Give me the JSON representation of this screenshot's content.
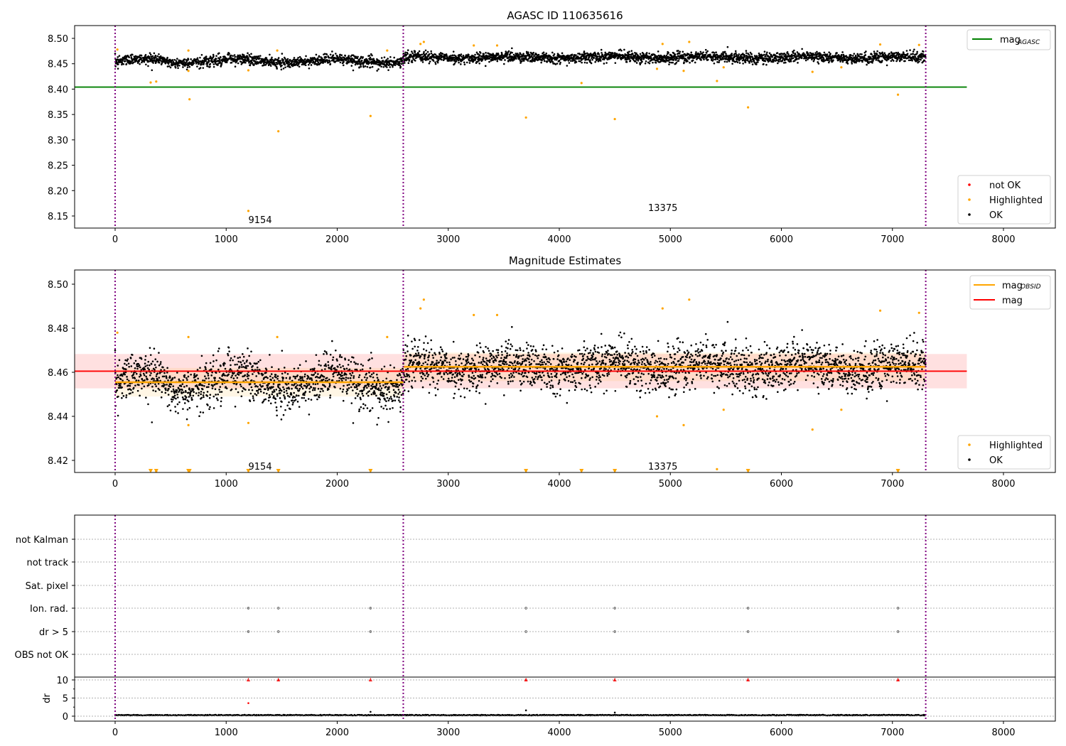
{
  "chart_data": [
    {
      "type": "scatter",
      "title": "AGASC ID 110635616",
      "xlim": [
        -370,
        8470
      ],
      "ylim": [
        8.132,
        8.526
      ],
      "xticks": [
        0,
        1000,
        2000,
        3000,
        4000,
        5000,
        6000,
        7000,
        8000
      ],
      "yticks": [
        8.15,
        8.2,
        8.25,
        8.3,
        8.35,
        8.4,
        8.45,
        8.5
      ],
      "mag_agasc": 8.404,
      "hline_xrange": [
        -370,
        7670
      ],
      "obsid_bounds": [
        0,
        2595,
        7300
      ],
      "obsids": [
        {
          "label": "9154",
          "start": 0,
          "end": 2595,
          "mean": 8.4555,
          "std": 0.0065,
          "wobble": 0.004,
          "n": 1300,
          "label_x": 1200,
          "label_y": 8.143
        },
        {
          "label": "13375",
          "start": 2595,
          "end": 7300,
          "mean": 8.4625,
          "std": 0.0065,
          "wobble": 0.002,
          "n": 2400,
          "label_x": 4800,
          "label_y": 8.167
        }
      ],
      "highlighted": [
        [
          320,
          8.413
        ],
        [
          370,
          8.415
        ],
        [
          660,
          8.436
        ],
        [
          670,
          8.38
        ],
        [
          1200,
          8.437
        ],
        [
          1200,
          8.16
        ],
        [
          1470,
          8.317
        ],
        [
          2300,
          8.347
        ],
        [
          3700,
          8.344
        ],
        [
          4200,
          8.412
        ],
        [
          4500,
          8.341
        ],
        [
          5420,
          8.416
        ],
        [
          5700,
          8.364
        ],
        [
          7050,
          8.389
        ],
        [
          6280,
          8.434
        ],
        [
          5120,
          8.436
        ],
        [
          4880,
          8.44
        ],
        [
          5480,
          8.443
        ],
        [
          6540,
          8.443
        ],
        [
          20,
          8.478
        ],
        [
          660,
          8.476
        ],
        [
          2450,
          8.476
        ],
        [
          2750,
          8.489
        ],
        [
          2780,
          8.493
        ],
        [
          3230,
          8.486
        ],
        [
          4930,
          8.489
        ],
        [
          5170,
          8.493
        ],
        [
          6890,
          8.488
        ],
        [
          7240,
          8.487
        ],
        [
          1460,
          8.476
        ],
        [
          3440,
          8.486
        ]
      ],
      "legend_line": {
        "main": "mag",
        "sub": "AGASC"
      },
      "legend_points": [
        "not OK",
        "Highlighted",
        "OK"
      ]
    },
    {
      "type": "scatter",
      "title": "Magnitude Estimates",
      "xlim": [
        -370,
        8470
      ],
      "ylim": [
        8.4145,
        8.5065
      ],
      "xticks": [
        0,
        1000,
        2000,
        3000,
        4000,
        5000,
        6000,
        7000,
        8000
      ],
      "yticks": [
        8.42,
        8.44,
        8.46,
        8.48,
        8.5
      ],
      "mag": 8.4605,
      "mag_std": 0.0078,
      "out_of_range_times": [
        320,
        370,
        660,
        670,
        1200,
        1470,
        2300,
        3700,
        4200,
        4500,
        5700,
        7050
      ],
      "legend_lines": [
        {
          "main": "mag",
          "sub": "OBSID"
        },
        {
          "main": "mag",
          "sub": ""
        }
      ],
      "legend_points": [
        "Highlighted",
        "OK"
      ]
    },
    {
      "type": "scatter",
      "flag_labels": [
        "not Kalman",
        "not track",
        "Sat. pixel",
        "Ion. rad.",
        "dr > 5",
        "OBS not OK"
      ],
      "flag_times": {
        "Ion. rad.": [
          1200,
          1470,
          2300,
          3700,
          4500,
          5700,
          7050
        ],
        "dr > 5": [
          1200,
          1470,
          2300,
          3700,
          4500,
          5700,
          7050
        ]
      },
      "ylabel": "dr",
      "dr_yticks": [
        0,
        5,
        10
      ],
      "dr_clipped_times": [
        1200,
        1470,
        2300,
        3700,
        4500,
        5700,
        7050
      ],
      "dr_clipped_value": 10,
      "dr_extra": [
        [
          1200,
          3.6
        ],
        [
          2300,
          1.2
        ],
        [
          3700,
          1.6
        ],
        [
          4500,
          1.0
        ]
      ]
    }
  ],
  "colors": {
    "ok": "#000000",
    "highlighted": "#ffa500",
    "not_ok": "#ff0000",
    "agasc": "#008000",
    "mag": "#ff0000",
    "obsid": "#ffa500",
    "bound": "#800080"
  }
}
